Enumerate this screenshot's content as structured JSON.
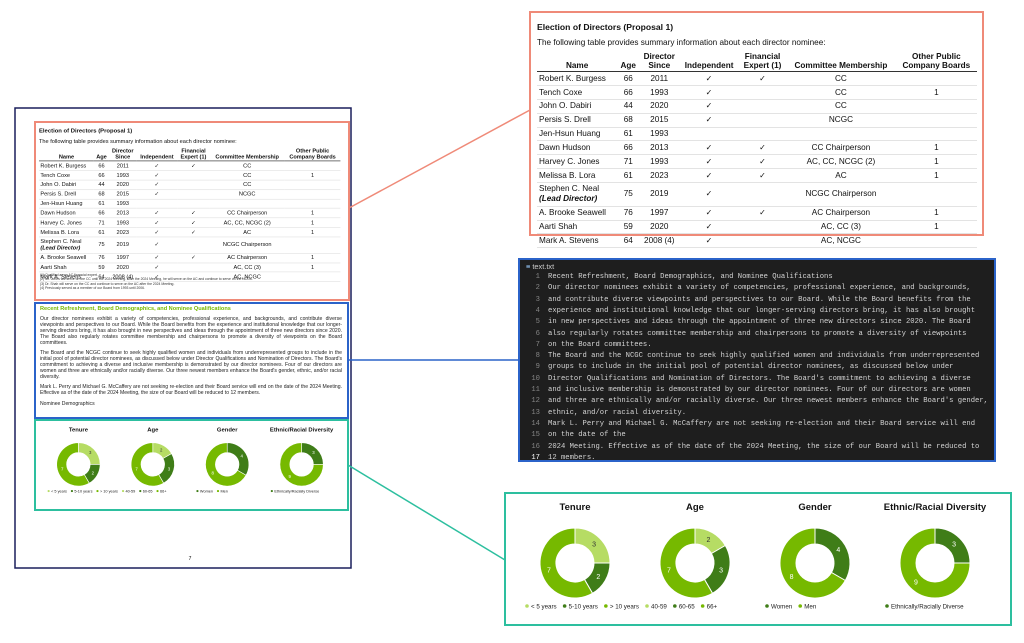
{
  "table": {
    "title": "Election of Directors (Proposal 1)",
    "intro": "The following table provides summary information about each director nominee:",
    "headers": [
      "Name",
      "Age",
      "Director\nSince",
      "Independent",
      "Financial\nExpert (1)",
      "Committee Membership",
      "Other Public\nCompany Boards"
    ],
    "rows": [
      {
        "name": "Robert K. Burgess",
        "age": 66,
        "since": 2011,
        "independent": "✓",
        "financial_expert": "✓",
        "committee": "CC",
        "other_boards": null
      },
      {
        "name": "Tench Coxe",
        "age": 66,
        "since": 1993,
        "independent": "✓",
        "financial_expert": null,
        "committee": "CC",
        "other_boards": 1
      },
      {
        "name": "John O. Dabiri",
        "age": 44,
        "since": 2020,
        "independent": "✓",
        "financial_expert": null,
        "committee": "CC",
        "other_boards": null
      },
      {
        "name": "Persis S. Drell",
        "age": 68,
        "since": 2015,
        "independent": "✓",
        "financial_expert": null,
        "committee": "NCGC",
        "other_boards": null
      },
      {
        "name": "Jen-Hsun Huang",
        "age": 61,
        "since": 1993,
        "independent": null,
        "financial_expert": null,
        "committee": null,
        "other_boards": null
      },
      {
        "name": "Dawn Hudson",
        "age": 66,
        "since": 2013,
        "independent": "✓",
        "financial_expert": "✓",
        "committee": "CC Chairperson",
        "other_boards": 1
      },
      {
        "name": "Harvey C. Jones",
        "age": 71,
        "since": 1993,
        "independent": "✓",
        "financial_expert": "✓",
        "committee": "AC, CC, NCGC (2)",
        "other_boards": 1
      },
      {
        "name": "Melissa B. Lora",
        "age": 61,
        "since": 2023,
        "independent": "✓",
        "financial_expert": "✓",
        "committee": "AC",
        "other_boards": 1
      },
      {
        "name": "Stephen C. Neal",
        "role": "(Lead Director)",
        "age": 75,
        "since": 2019,
        "independent": "✓",
        "financial_expert": null,
        "committee": "NCGC Chairperson",
        "other_boards": null
      },
      {
        "name": "A. Brooke Seawell",
        "age": 76,
        "since": 1997,
        "independent": "✓",
        "financial_expert": "✓",
        "committee": "AC Chairperson",
        "other_boards": 1
      },
      {
        "name": "Aarti Shah",
        "age": 59,
        "since": 2020,
        "independent": "✓",
        "financial_expert": null,
        "committee": "AC, CC (3)",
        "other_boards": 1
      },
      {
        "name": "Mark A. Stevens",
        "age": 64,
        "since": "2008 (4)",
        "independent": "✓",
        "financial_expert": null,
        "committee": "AC, NCGC",
        "other_boards": null
      }
    ],
    "footnotes": [
      "(1) Qualified as an AC financial expert.",
      "(2) Mr. Jones will serve on the CC until the 2024 Meeting. After the 2024 Meeting, he will serve on the AC and continue to serve on the NCGC.",
      "(3) Dr. Shah will serve on the CC and continue to serve on the AC after the 2024 Meeting.",
      "(4) Previously served as a member of our Board from 1993 until 2006."
    ]
  },
  "section": {
    "heading": "Recent Refreshment, Board Demographics, and Nominee Qualifications",
    "paragraphs": [
      "Our director nominees exhibit a variety of competencies, professional experience, and backgrounds, and contribute diverse viewpoints and perspectives to our Board. While the Board benefits from the experience and institutional knowledge that our longer-serving directors bring, it has also brought in new perspectives and ideas through the appointment of three new directors since 2020. The Board also regularly rotates committee membership and chairpersons to promote a diversity of viewpoints on the Board committees.",
      "The Board and the NCGC continue to seek highly qualified women and individuals from underrepresented groups to include in the initial pool of potential director nominees, as discussed below under Director Qualifications and Nomination of Directors. The Board's commitment to achieving a diverse and inclusive membership is demonstrated by our director nominees. Four of our directors are women and three are ethnically and/or racially diverse. Our three newest members enhance the Board's gender, ethnic, and/or racial diversity.",
      "Mark L. Perry and Michael G. McCaffery are not seeking re-election and their Board service will end on the date of the 2024 Meeting. Effective as of the date of the 2024 Meeting, the size of our Board will be reduced to 12 members."
    ],
    "subheading": "Nominee Demographics"
  },
  "page_number": "7",
  "editor": {
    "filename": "text.txt",
    "lines": [
      {
        "number": 1,
        "text": "Recent Refreshment, Board Demographics, and Nominee Qualifications"
      },
      {
        "number": 2,
        "text": "Our director nominees exhibit a variety of competencies, professional experience, and backgrounds,"
      },
      {
        "number": 3,
        "text": "and contribute diverse viewpoints and perspectives to our Board. While the Board benefits from the"
      },
      {
        "number": 4,
        "text": "experience and institutional knowledge that our longer-serving directors bring, it has also brought"
      },
      {
        "number": 5,
        "text": "in new perspectives and ideas through the appointment of three new directors since 2020. The Board"
      },
      {
        "number": 6,
        "text": "also regularly rotates committee membership and chairpersons to promote a diversity of viewpoints"
      },
      {
        "number": 7,
        "text": "on the Board committees."
      },
      {
        "number": 8,
        "text": "The Board and the NCGC continue to seek highly qualified women and individuals from underrepresented"
      },
      {
        "number": 9,
        "text": "groups to include in the initial pool of potential director nominees, as discussed below under"
      },
      {
        "number": 10,
        "text": "Director Qualifications and Nomination of Directors. The Board's commitment to achieving a diverse"
      },
      {
        "number": 11,
        "text": "and inclusive membership is demonstrated by our director nominees. Four of our directors are women"
      },
      {
        "number": 12,
        "text": "and three are ethnically and/or racially diverse. Our three newest members enhance the Board's gender,"
      },
      {
        "number": 13,
        "text": "ethnic, and/or racial diversity."
      },
      {
        "number": 14,
        "text": "Mark L. Perry and Michael G. McCaffery are not seeking re-election and their Board service will end"
      },
      {
        "number": 15,
        "text": "on the date of the"
      },
      {
        "number": 16,
        "text": "2024 Meeting. Effective as of the date of the 2024 Meeting, the size of our Board will be reduced to"
      },
      {
        "number": 17,
        "text": "12 members."
      }
    ]
  },
  "charts": [
    {
      "type": "donut",
      "title": "Tenure",
      "segments": [
        {
          "name": "< 5 years",
          "value": 3,
          "color": "#b6dc64"
        },
        {
          "name": "5-10 years",
          "value": 2,
          "color": "#3f7d18"
        },
        {
          "name": "> 10 years",
          "value": 7,
          "color": "#76b900"
        }
      ]
    },
    {
      "type": "donut",
      "title": "Age",
      "segments": [
        {
          "name": "40-59",
          "value": 2,
          "color": "#b6dc64"
        },
        {
          "name": "60-65",
          "value": 3,
          "color": "#3f7d18"
        },
        {
          "name": "66+",
          "value": 7,
          "color": "#76b900"
        }
      ]
    },
    {
      "type": "donut",
      "title": "Gender",
      "segments": [
        {
          "name": "Women",
          "value": 4,
          "color": "#3f7d18"
        },
        {
          "name": "Men",
          "value": 8,
          "color": "#76b900"
        }
      ]
    },
    {
      "type": "donut",
      "title": "Ethnic/Racial Diversity",
      "segments": [
        {
          "name": "Ethnically/Racially Diverse",
          "value": 3,
          "color": "#3f7d18"
        },
        {
          "name": null,
          "value": 9,
          "color": "#76b900"
        }
      ]
    }
  ]
}
